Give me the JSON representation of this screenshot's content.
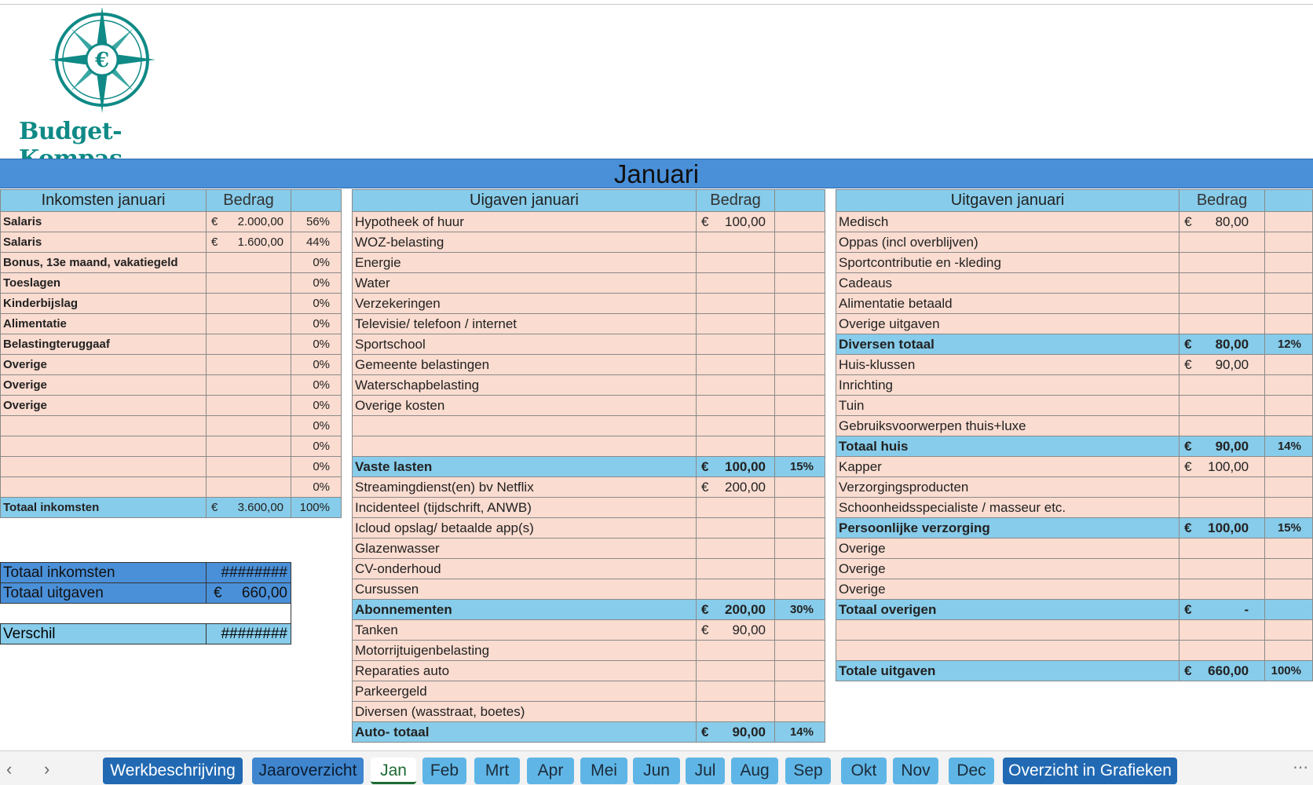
{
  "logo": {
    "text": "Budget-Kompas"
  },
  "month_title": "Januari",
  "income": {
    "header": "Inkomsten januari",
    "amount_header": "Bedrag",
    "rows": [
      {
        "label": "Salaris",
        "eur": "€",
        "amount": "2.000,00",
        "pct": "56%"
      },
      {
        "label": "Salaris",
        "eur": "€",
        "amount": "1.600,00",
        "pct": "44%"
      },
      {
        "label": "Bonus, 13e maand, vakatiegeld",
        "eur": "",
        "amount": "",
        "pct": "0%"
      },
      {
        "label": "Toeslagen",
        "eur": "",
        "amount": "",
        "pct": "0%"
      },
      {
        "label": "Kinderbijslag",
        "eur": "",
        "amount": "",
        "pct": "0%"
      },
      {
        "label": "Alimentatie",
        "eur": "",
        "amount": "",
        "pct": "0%"
      },
      {
        "label": "Belastingteruggaaf",
        "eur": "",
        "amount": "",
        "pct": "0%"
      },
      {
        "label": "Overige",
        "eur": "",
        "amount": "",
        "pct": "0%"
      },
      {
        "label": "Overige",
        "eur": "",
        "amount": "",
        "pct": "0%"
      },
      {
        "label": "Overige",
        "eur": "",
        "amount": "",
        "pct": "0%"
      },
      {
        "label": "",
        "eur": "",
        "amount": "",
        "pct": "0%"
      },
      {
        "label": "",
        "eur": "",
        "amount": "",
        "pct": "0%"
      },
      {
        "label": "",
        "eur": "",
        "amount": "",
        "pct": "0%"
      },
      {
        "label": "",
        "eur": "",
        "amount": "",
        "pct": "0%"
      }
    ],
    "total": {
      "label": "Totaal inkomsten",
      "eur": "€",
      "amount": "3.600,00",
      "pct": "100%"
    }
  },
  "summary": {
    "total_income_label": "Totaal inkomsten",
    "total_income_value": "########",
    "total_expenses_label": "Totaal uitgaven",
    "total_expenses_eur": "€",
    "total_expenses_value": "660,00",
    "difference_label": "Verschil",
    "difference_value": "########"
  },
  "expenses_mid": {
    "header": "Uigaven januari",
    "amount_header": "Bedrag",
    "rows": [
      {
        "label": "Hypotheek of huur",
        "eur": "€",
        "amount": "100,00",
        "pct": "",
        "total": false
      },
      {
        "label": "WOZ-belasting",
        "eur": "",
        "amount": "",
        "pct": "",
        "total": false
      },
      {
        "label": "Energie",
        "eur": "",
        "amount": "",
        "pct": "",
        "total": false
      },
      {
        "label": "Water",
        "eur": "",
        "amount": "",
        "pct": "",
        "total": false
      },
      {
        "label": "Verzekeringen",
        "eur": "",
        "amount": "",
        "pct": "",
        "total": false
      },
      {
        "label": "Televisie/ telefoon / internet",
        "eur": "",
        "amount": "",
        "pct": "",
        "total": false
      },
      {
        "label": "Sportschool",
        "eur": "",
        "amount": "",
        "pct": "",
        "total": false
      },
      {
        "label": "Gemeente belastingen",
        "eur": "",
        "amount": "",
        "pct": "",
        "total": false
      },
      {
        "label": "Waterschapbelasting",
        "eur": "",
        "amount": "",
        "pct": "",
        "total": false
      },
      {
        "label": "Overige kosten",
        "eur": "",
        "amount": "",
        "pct": "",
        "total": false
      },
      {
        "label": "",
        "eur": "",
        "amount": "",
        "pct": "",
        "total": false
      },
      {
        "label": "",
        "eur": "",
        "amount": "",
        "pct": "",
        "total": false
      },
      {
        "label": "Vaste lasten",
        "eur": "€",
        "amount": "100,00",
        "pct": "15%",
        "total": true
      },
      {
        "label": "Streamingdienst(en) bv Netflix",
        "eur": "€",
        "amount": "200,00",
        "pct": "",
        "total": false
      },
      {
        "label": "Incidenteel (tijdschrift, ANWB)",
        "eur": "",
        "amount": "",
        "pct": "",
        "total": false
      },
      {
        "label": "Icloud opslag/ betaalde app(s)",
        "eur": "",
        "amount": "",
        "pct": "",
        "total": false
      },
      {
        "label": "Glazenwasser",
        "eur": "",
        "amount": "",
        "pct": "",
        "total": false
      },
      {
        "label": "CV-onderhoud",
        "eur": "",
        "amount": "",
        "pct": "",
        "total": false
      },
      {
        "label": "Cursussen",
        "eur": "",
        "amount": "",
        "pct": "",
        "total": false
      },
      {
        "label": "Abonnementen",
        "eur": "€",
        "amount": "200,00",
        "pct": "30%",
        "total": true
      },
      {
        "label": "Tanken",
        "eur": "€",
        "amount": "90,00",
        "pct": "",
        "total": false
      },
      {
        "label": "Motorrijtuigenbelasting",
        "eur": "",
        "amount": "",
        "pct": "",
        "total": false
      },
      {
        "label": "Reparaties auto",
        "eur": "",
        "amount": "",
        "pct": "",
        "total": false
      },
      {
        "label": "Parkeergeld",
        "eur": "",
        "amount": "",
        "pct": "",
        "total": false
      },
      {
        "label": "Diversen (wasstraat, boetes)",
        "eur": "",
        "amount": "",
        "pct": "",
        "total": false
      },
      {
        "label": "Auto- totaal",
        "eur": "€",
        "amount": "90,00",
        "pct": "14%",
        "total": true
      }
    ]
  },
  "expenses_right": {
    "header": "Uitgaven januari",
    "amount_header": "Bedrag",
    "rows": [
      {
        "label": "Medisch",
        "eur": "€",
        "amount": "80,00",
        "pct": "",
        "total": false
      },
      {
        "label": "Oppas (incl overblijven)",
        "eur": "",
        "amount": "",
        "pct": "",
        "total": false
      },
      {
        "label": "Sportcontributie en -kleding",
        "eur": "",
        "amount": "",
        "pct": "",
        "total": false
      },
      {
        "label": "Cadeaus",
        "eur": "",
        "amount": "",
        "pct": "",
        "total": false
      },
      {
        "label": "Alimentatie betaald",
        "eur": "",
        "amount": "",
        "pct": "",
        "total": false
      },
      {
        "label": "Overige uitgaven",
        "eur": "",
        "amount": "",
        "pct": "",
        "total": false
      },
      {
        "label": "Diversen totaal",
        "eur": "€",
        "amount": "80,00",
        "pct": "12%",
        "total": true
      },
      {
        "label": "Huis-klussen",
        "eur": "€",
        "amount": "90,00",
        "pct": "",
        "total": false
      },
      {
        "label": "Inrichting",
        "eur": "",
        "amount": "",
        "pct": "",
        "total": false
      },
      {
        "label": "Tuin",
        "eur": "",
        "amount": "",
        "pct": "",
        "total": false
      },
      {
        "label": "Gebruiksvoorwerpen thuis+luxe",
        "eur": "",
        "amount": "",
        "pct": "",
        "total": false
      },
      {
        "label": "Totaal huis",
        "eur": "€",
        "amount": "90,00",
        "pct": "14%",
        "total": true
      },
      {
        "label": "Kapper",
        "eur": "€",
        "amount": "100,00",
        "pct": "",
        "total": false
      },
      {
        "label": "Verzorgingsproducten",
        "eur": "",
        "amount": "",
        "pct": "",
        "total": false
      },
      {
        "label": "Schoonheidsspecialiste / masseur  etc.",
        "eur": "",
        "amount": "",
        "pct": "",
        "total": false
      },
      {
        "label": "Persoonlijke verzorging",
        "eur": "€",
        "amount": "100,00",
        "pct": "15%",
        "total": true
      },
      {
        "label": "Overige",
        "eur": "",
        "amount": "",
        "pct": "",
        "total": false
      },
      {
        "label": "Overige",
        "eur": "",
        "amount": "",
        "pct": "",
        "total": false
      },
      {
        "label": "Overige",
        "eur": "",
        "amount": "",
        "pct": "",
        "total": false
      },
      {
        "label": "Totaal overigen",
        "eur": "€",
        "amount": "-",
        "pct": "",
        "total": true
      },
      {
        "label": "",
        "eur": "",
        "amount": "",
        "pct": "",
        "total": false
      },
      {
        "label": "",
        "eur": "",
        "amount": "",
        "pct": "",
        "total": false
      },
      {
        "label": "Totale uitgaven",
        "eur": "€",
        "amount": "660,00",
        "pct": "100%",
        "total": true
      }
    ]
  },
  "tabs": [
    {
      "label": "Werkbeschrijving",
      "style": "dark"
    },
    {
      "label": "Jaaroverzicht",
      "style": "mid"
    },
    {
      "label": "Jan",
      "style": "active"
    },
    {
      "label": "Feb",
      "style": "light"
    },
    {
      "label": "Mrt",
      "style": "light"
    },
    {
      "label": "Apr",
      "style": "light"
    },
    {
      "label": "Mei",
      "style": "light"
    },
    {
      "label": "Jun",
      "style": "light"
    },
    {
      "label": "Jul",
      "style": "light"
    },
    {
      "label": "Aug",
      "style": "light"
    },
    {
      "label": "Sep",
      "style": "light"
    },
    {
      "label": "Okt",
      "style": "light"
    },
    {
      "label": "Nov",
      "style": "light"
    },
    {
      "label": "Dec",
      "style": "light"
    },
    {
      "label": "Overzicht in Grafieken",
      "style": "dark"
    }
  ],
  "nav": {
    "prev": "‹",
    "next": "›",
    "more": "⋯"
  },
  "colors": {
    "brand_teal": "#0f8a86",
    "banner_blue": "#4a90d9",
    "header_light_blue": "#87ccea",
    "row_peach": "#fadcd0"
  }
}
